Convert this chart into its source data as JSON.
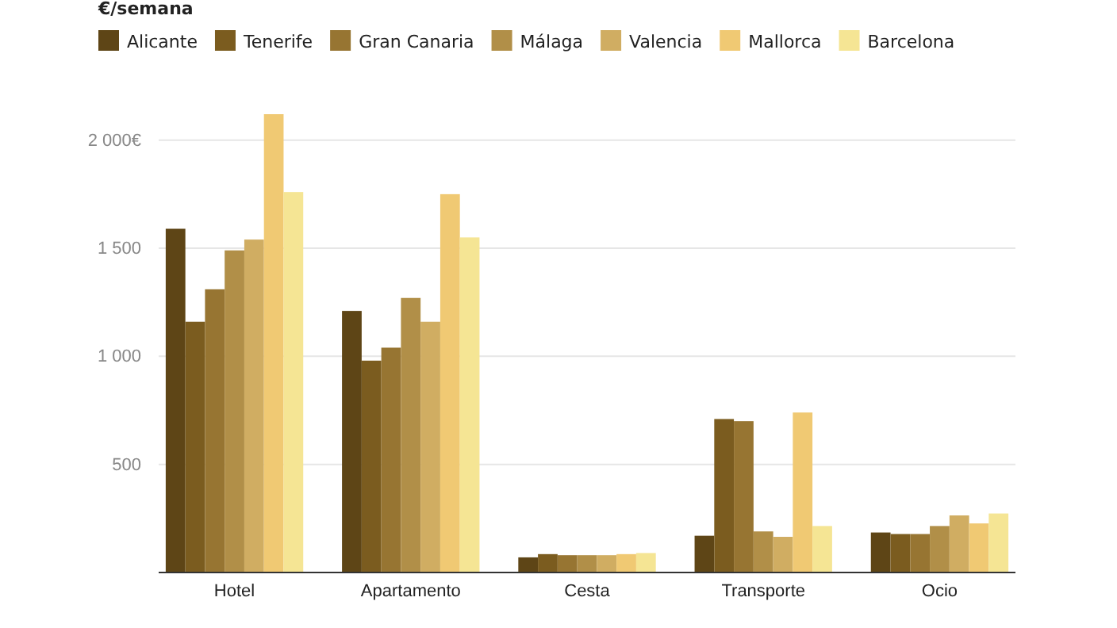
{
  "chart_data": {
    "type": "bar",
    "title": "€/semana",
    "categories": [
      "Hotel",
      "Apartamento",
      "Cesta",
      "Transporte",
      "Ocio"
    ],
    "series": [
      {
        "name": "Alicante",
        "color": "#5e4516",
        "values": [
          1590,
          1210,
          70,
          170,
          185
        ]
      },
      {
        "name": "Tenerife",
        "color": "#7b5c1f",
        "values": [
          1160,
          980,
          85,
          710,
          178
        ]
      },
      {
        "name": "Gran Canaria",
        "color": "#977532",
        "values": [
          1310,
          1040,
          80,
          700,
          178
        ]
      },
      {
        "name": "Málaga",
        "color": "#b18f48",
        "values": [
          1490,
          1270,
          80,
          190,
          215
        ]
      },
      {
        "name": "Valencia",
        "color": "#d0ad62",
        "values": [
          1540,
          1160,
          80,
          165,
          264
        ]
      },
      {
        "name": "Mallorca",
        "color": "#f0c973",
        "values": [
          2120,
          1750,
          85,
          740,
          227
        ]
      },
      {
        "name": "Barcelona",
        "color": "#f5e594",
        "values": [
          1760,
          1550,
          90,
          215,
          273
        ]
      }
    ],
    "ylim": [
      0,
      2120
    ],
    "yticks": [
      {
        "value": 500,
        "label": "500"
      },
      {
        "value": 1000,
        "label": "1 000"
      },
      {
        "value": 1500,
        "label": "1 500"
      },
      {
        "value": 2000,
        "label": "2 000€"
      }
    ],
    "grid": "y",
    "legend": "top left"
  }
}
